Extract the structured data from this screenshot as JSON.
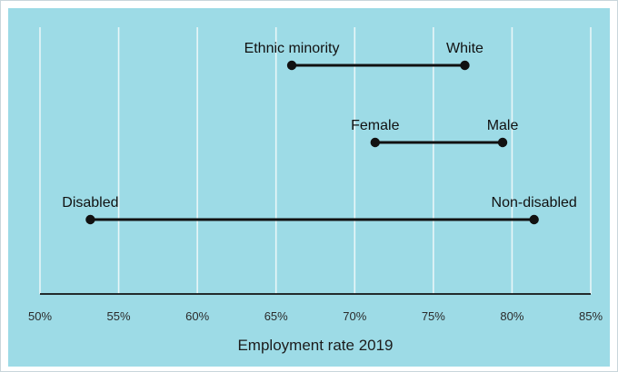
{
  "chart_data": {
    "type": "dumbbell",
    "xlabel": "Employment rate 2019",
    "xlim": [
      50,
      85
    ],
    "x_ticks": [
      50,
      55,
      60,
      65,
      70,
      75,
      80,
      85
    ],
    "x_tick_labels": [
      "50%",
      "55%",
      "60%",
      "65%",
      "70%",
      "75%",
      "80%",
      "85%"
    ],
    "grid": "vertical",
    "colors": {
      "background": "#9ddbe6",
      "grid": "#e8f6f8",
      "marks": "#111111",
      "axis": "#111111"
    },
    "series": [
      {
        "low_label": "Ethnic minority",
        "low_value": 66,
        "high_label": "White",
        "high_value": 77
      },
      {
        "low_label": "Female",
        "low_value": 71.3,
        "high_label": "Male",
        "high_value": 79.4
      },
      {
        "low_label": "Disabled",
        "low_value": 53.2,
        "high_label": "Non-disabled",
        "high_value": 81.4
      }
    ]
  }
}
